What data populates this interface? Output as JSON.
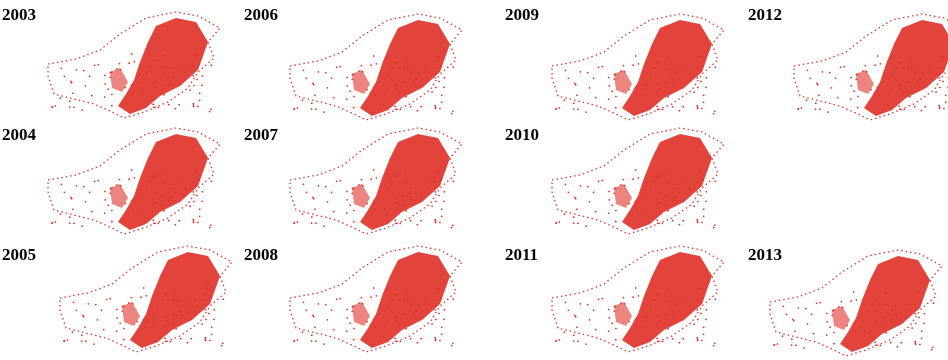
{
  "panels": [
    {
      "year": "2003"
    },
    {
      "year": "2004"
    },
    {
      "year": "2005"
    },
    {
      "year": "2006"
    },
    {
      "year": "2007"
    },
    {
      "year": "2008"
    },
    {
      "year": "2009"
    },
    {
      "year": "2010"
    },
    {
      "year": "2011"
    },
    {
      "year": "2012"
    },
    {
      "year": "2013"
    }
  ]
}
